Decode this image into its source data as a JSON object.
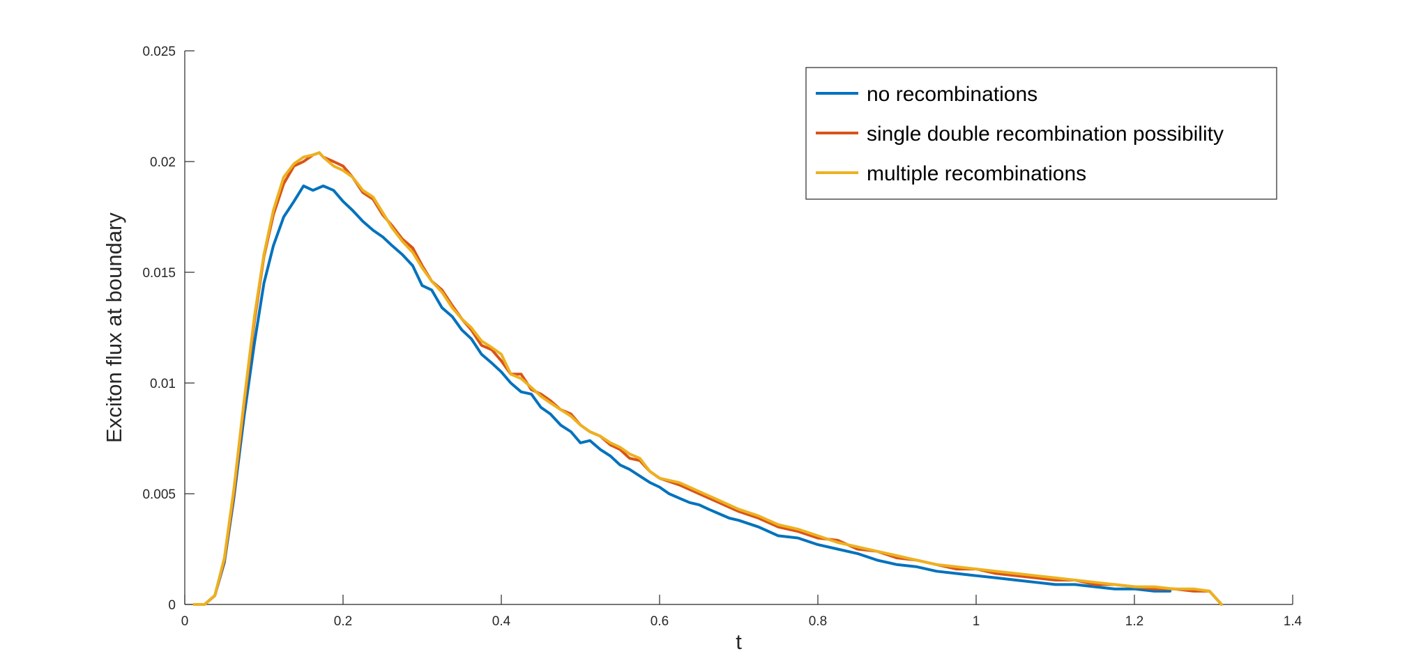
{
  "chart_data": {
    "type": "line",
    "title": "",
    "xlabel": "t",
    "ylabel": "Exciton flux at boundary",
    "xlim": [
      0,
      1.4
    ],
    "ylim": [
      0,
      0.025
    ],
    "xticks": [
      0,
      0.2,
      0.4,
      0.6,
      0.8,
      1.0,
      1.2,
      1.4
    ],
    "xtick_labels": [
      "0",
      "0.2",
      "0.4",
      "0.6",
      "0.8",
      "1",
      "1.2",
      "1.4"
    ],
    "yticks": [
      0,
      0.005,
      0.01,
      0.015,
      0.02,
      0.025
    ],
    "ytick_labels": [
      "0",
      "0.005",
      "0.01",
      "0.015",
      "0.02",
      "0.025"
    ],
    "grid": false,
    "legend_position": "top-right",
    "series": [
      {
        "name": "no recombinations",
        "color": "#0072BD",
        "x": [
          0.012,
          0.025,
          0.038,
          0.05,
          0.062,
          0.075,
          0.088,
          0.1,
          0.112,
          0.125,
          0.138,
          0.15,
          0.162,
          0.175,
          0.188,
          0.2,
          0.212,
          0.225,
          0.238,
          0.25,
          0.262,
          0.275,
          0.288,
          0.3,
          0.312,
          0.325,
          0.338,
          0.35,
          0.362,
          0.375,
          0.388,
          0.4,
          0.412,
          0.425,
          0.438,
          0.45,
          0.462,
          0.475,
          0.488,
          0.5,
          0.512,
          0.525,
          0.538,
          0.55,
          0.562,
          0.575,
          0.588,
          0.6,
          0.612,
          0.625,
          0.638,
          0.65,
          0.662,
          0.675,
          0.688,
          0.7,
          0.725,
          0.75,
          0.775,
          0.8,
          0.825,
          0.85,
          0.875,
          0.9,
          0.925,
          0.95,
          0.975,
          1.0,
          1.025,
          1.05,
          1.075,
          1.1,
          1.125,
          1.15,
          1.175,
          1.2,
          1.225,
          1.245
        ],
        "y": [
          0.0,
          0.0,
          0.0004,
          0.0019,
          0.0048,
          0.0085,
          0.0118,
          0.0145,
          0.0162,
          0.0175,
          0.0182,
          0.0189,
          0.0187,
          0.0189,
          0.0187,
          0.0182,
          0.0178,
          0.0173,
          0.0169,
          0.0166,
          0.0162,
          0.0158,
          0.0153,
          0.0144,
          0.0142,
          0.0134,
          0.013,
          0.0124,
          0.012,
          0.0113,
          0.0109,
          0.0105,
          0.01,
          0.0096,
          0.0095,
          0.0089,
          0.0086,
          0.0081,
          0.0078,
          0.0073,
          0.0074,
          0.007,
          0.0067,
          0.0063,
          0.0061,
          0.0058,
          0.0055,
          0.0053,
          0.005,
          0.0048,
          0.0046,
          0.0045,
          0.0043,
          0.0041,
          0.0039,
          0.0038,
          0.0035,
          0.0031,
          0.003,
          0.0027,
          0.0025,
          0.0023,
          0.002,
          0.0018,
          0.0017,
          0.0015,
          0.0014,
          0.0013,
          0.0012,
          0.0011,
          0.001,
          0.0009,
          0.0009,
          0.0008,
          0.0007,
          0.0007,
          0.0006,
          0.0006
        ]
      },
      {
        "name": "single double recombination possibility",
        "color": "#D95319",
        "x": [
          0.012,
          0.025,
          0.038,
          0.05,
          0.062,
          0.075,
          0.088,
          0.1,
          0.112,
          0.125,
          0.138,
          0.15,
          0.162,
          0.17,
          0.175,
          0.188,
          0.2,
          0.212,
          0.225,
          0.238,
          0.25,
          0.262,
          0.275,
          0.288,
          0.3,
          0.312,
          0.325,
          0.338,
          0.35,
          0.362,
          0.375,
          0.388,
          0.4,
          0.412,
          0.425,
          0.438,
          0.45,
          0.462,
          0.475,
          0.488,
          0.5,
          0.512,
          0.525,
          0.538,
          0.55,
          0.562,
          0.575,
          0.588,
          0.6,
          0.625,
          0.65,
          0.675,
          0.7,
          0.725,
          0.75,
          0.775,
          0.8,
          0.825,
          0.85,
          0.875,
          0.9,
          0.925,
          0.95,
          0.975,
          1.0,
          1.025,
          1.05,
          1.075,
          1.1,
          1.125,
          1.15,
          1.175,
          1.2,
          1.225,
          1.25,
          1.275,
          1.295,
          1.31
        ],
        "y": [
          0.0,
          0.0,
          0.0004,
          0.002,
          0.005,
          0.009,
          0.0128,
          0.0157,
          0.0176,
          0.019,
          0.0198,
          0.02,
          0.0203,
          0.0204,
          0.0202,
          0.02,
          0.0198,
          0.0193,
          0.0186,
          0.0183,
          0.0176,
          0.0171,
          0.0165,
          0.0161,
          0.0153,
          0.0146,
          0.0142,
          0.0135,
          0.0129,
          0.0124,
          0.0117,
          0.0115,
          0.011,
          0.0104,
          0.0104,
          0.0097,
          0.0095,
          0.0092,
          0.0088,
          0.0086,
          0.0081,
          0.0078,
          0.0076,
          0.0072,
          0.007,
          0.0066,
          0.0065,
          0.006,
          0.0057,
          0.0054,
          0.005,
          0.0046,
          0.0042,
          0.0039,
          0.0035,
          0.0033,
          0.003,
          0.0029,
          0.0025,
          0.0024,
          0.0021,
          0.002,
          0.0018,
          0.0016,
          0.0016,
          0.0014,
          0.0013,
          0.0012,
          0.0011,
          0.0011,
          0.0009,
          0.0009,
          0.0008,
          0.0007,
          0.0007,
          0.0006,
          0.0006,
          0.0
        ]
      },
      {
        "name": "multiple recombinations",
        "color": "#EDB120",
        "x": [
          0.012,
          0.025,
          0.038,
          0.05,
          0.062,
          0.075,
          0.088,
          0.1,
          0.112,
          0.125,
          0.138,
          0.15,
          0.162,
          0.17,
          0.175,
          0.188,
          0.2,
          0.212,
          0.225,
          0.238,
          0.25,
          0.262,
          0.275,
          0.288,
          0.3,
          0.312,
          0.325,
          0.338,
          0.35,
          0.362,
          0.375,
          0.388,
          0.4,
          0.412,
          0.425,
          0.438,
          0.45,
          0.462,
          0.475,
          0.488,
          0.5,
          0.512,
          0.525,
          0.538,
          0.55,
          0.562,
          0.575,
          0.588,
          0.6,
          0.625,
          0.65,
          0.675,
          0.7,
          0.725,
          0.75,
          0.775,
          0.8,
          0.825,
          0.85,
          0.875,
          0.9,
          0.925,
          0.95,
          0.975,
          1.0,
          1.025,
          1.05,
          1.075,
          1.1,
          1.125,
          1.15,
          1.175,
          1.2,
          1.225,
          1.25,
          1.275,
          1.295,
          1.31
        ],
        "y": [
          0.0,
          0.0,
          0.0004,
          0.0021,
          0.0052,
          0.0092,
          0.013,
          0.0158,
          0.0178,
          0.0193,
          0.0199,
          0.0202,
          0.0203,
          0.0204,
          0.0202,
          0.0198,
          0.0196,
          0.0193,
          0.0187,
          0.0184,
          0.0177,
          0.017,
          0.0164,
          0.0159,
          0.0152,
          0.0146,
          0.0141,
          0.0134,
          0.0129,
          0.0125,
          0.0119,
          0.0116,
          0.0113,
          0.0104,
          0.0102,
          0.0098,
          0.0094,
          0.0091,
          0.0088,
          0.0085,
          0.0081,
          0.0078,
          0.0076,
          0.0073,
          0.0071,
          0.0068,
          0.0066,
          0.006,
          0.0057,
          0.0055,
          0.0051,
          0.0047,
          0.0043,
          0.004,
          0.0036,
          0.0034,
          0.0031,
          0.0028,
          0.0026,
          0.0024,
          0.0022,
          0.002,
          0.0018,
          0.0017,
          0.0016,
          0.0015,
          0.0014,
          0.0013,
          0.0012,
          0.0011,
          0.001,
          0.0009,
          0.0008,
          0.0008,
          0.0007,
          0.0007,
          0.0006,
          0.0
        ]
      }
    ]
  }
}
